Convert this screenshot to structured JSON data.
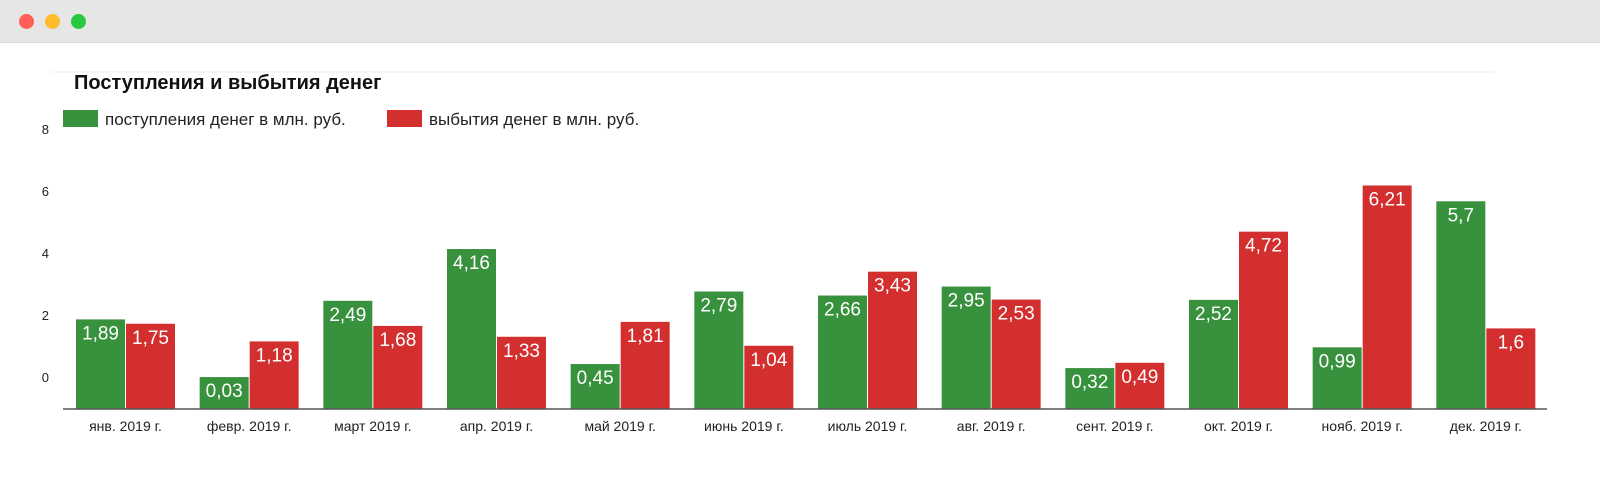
{
  "window": {
    "buttons": [
      "close",
      "minimize",
      "maximize"
    ]
  },
  "colors": {
    "income": "#38913d",
    "outflow": "#d32f2f",
    "axis": "#555555",
    "text": "#222222"
  },
  "chart_data": {
    "type": "bar",
    "title": "Поступления и выбытия денег",
    "xlabel": "",
    "ylabel": "",
    "ylim": [
      -1,
      8
    ],
    "yticks": [
      0,
      2,
      4,
      6,
      8
    ],
    "legend_position": "top-left",
    "grid": false,
    "categories": [
      "янв. 2019 г.",
      "февр. 2019 г.",
      "март 2019 г.",
      "апр. 2019 г.",
      "май 2019 г.",
      "июнь 2019 г.",
      "июль 2019 г.",
      "авг. 2019 г.",
      "сент. 2019 г.",
      "окт. 2019 г.",
      "нояб. 2019 г.",
      "дек. 2019 г."
    ],
    "series": [
      {
        "name": "поступления денег в млн. руб.",
        "color": "#38913d",
        "values": [
          1.89,
          0.03,
          2.49,
          4.16,
          0.45,
          2.79,
          2.66,
          2.95,
          0.32,
          2.52,
          0.99,
          5.7
        ],
        "labels": [
          "1,89",
          "0,03",
          "2,49",
          "4,16",
          "0,45",
          "2,79",
          "2,66",
          "2,95",
          "0,32",
          "2,52",
          "0,99",
          "5,7"
        ]
      },
      {
        "name": "выбытия денег в млн. руб.",
        "color": "#d32f2f",
        "values": [
          1.75,
          1.18,
          1.68,
          1.33,
          1.81,
          1.04,
          3.43,
          2.53,
          0.49,
          4.72,
          6.21,
          1.6
        ],
        "labels": [
          "1,75",
          "1,18",
          "1,68",
          "1,33",
          "1,81",
          "1,04",
          "3,43",
          "2,53",
          "0,49",
          "4,72",
          "6,21",
          "1,6"
        ]
      }
    ]
  }
}
